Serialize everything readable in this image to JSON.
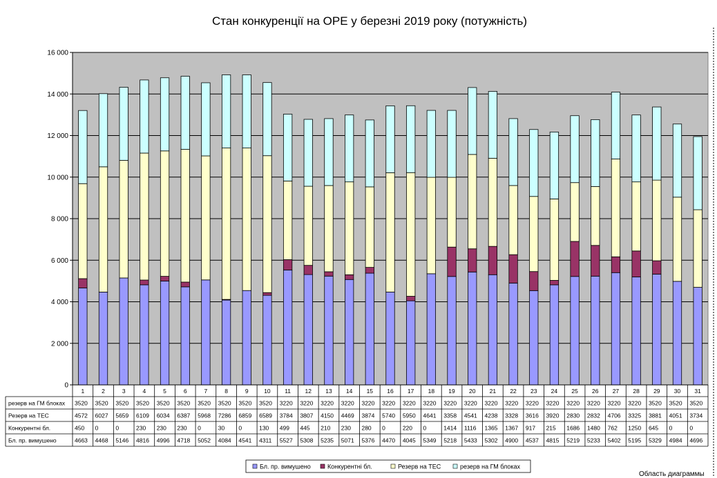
{
  "chart_data": {
    "type": "bar",
    "stacked": true,
    "title": "Стан конкуренції на ОРЕ  у березні 2019 року (потужність)",
    "categories": [
      "1",
      "2",
      "3",
      "4",
      "5",
      "6",
      "7",
      "8",
      "9",
      "10",
      "11",
      "12",
      "13",
      "14",
      "15",
      "16",
      "17",
      "18",
      "19",
      "20",
      "21",
      "22",
      "23",
      "24",
      "25",
      "26",
      "27",
      "28",
      "29",
      "30",
      "31"
    ],
    "ylim": [
      0,
      16000
    ],
    "yticks": [
      "0",
      "2 000",
      "4 000",
      "6 000",
      "8 000",
      "10 000",
      "12 000",
      "14 000",
      "16 000"
    ],
    "grid": true,
    "legend_position": "bottom",
    "data_table": true,
    "series": [
      {
        "name": "Бл. пр. вимушено",
        "color": "#9999ff",
        "values": [
          4663,
          4468,
          5146,
          4816,
          4996,
          4718,
          5052,
          4084,
          4541,
          4311,
          5527,
          5308,
          5235,
          5071,
          5376,
          4470,
          4045,
          5349,
          5218,
          5433,
          5302,
          4900,
          4537,
          4815,
          5219,
          5233,
          5402,
          5195,
          5329,
          4984,
          4696
        ]
      },
      {
        "name": "Конкурентні бл.",
        "color": "#993366",
        "values": [
          450,
          0,
          0,
          230,
          230,
          230,
          0,
          30,
          0,
          130,
          499,
          445,
          210,
          230,
          280,
          0,
          220,
          0,
          1414,
          1116,
          1365,
          1367,
          917,
          215,
          1686,
          1480,
          762,
          1250,
          645,
          0,
          0
        ]
      },
      {
        "name": "Резерв на ТЕС",
        "color": "#ffffcc",
        "values": [
          4572,
          6027,
          5659,
          6109,
          6034,
          6387,
          5968,
          7286,
          6859,
          6589,
          3784,
          3807,
          4150,
          4469,
          3874,
          5740,
          5950,
          4641,
          3358,
          4541,
          4238,
          3328,
          3616,
          3920,
          2830,
          2832,
          4706,
          3325,
          3881,
          4051,
          3734
        ]
      },
      {
        "name": "резерв на ГМ блоках",
        "color": "#ccffff",
        "values": [
          3520,
          3520,
          3520,
          3520,
          3520,
          3520,
          3520,
          3520,
          3520,
          3520,
          3220,
          3220,
          3220,
          3220,
          3220,
          3220,
          3220,
          3220,
          3220,
          3220,
          3220,
          3220,
          3220,
          3220,
          3220,
          3220,
          3220,
          3220,
          3520,
          3520,
          3520
        ]
      }
    ],
    "table_row_order": [
      3,
      2,
      1,
      0
    ]
  },
  "footer": {
    "corner_label": "Область диаграммы"
  },
  "colors": {
    "plot_background": "#c0c0c0",
    "gridline": "#000000"
  }
}
